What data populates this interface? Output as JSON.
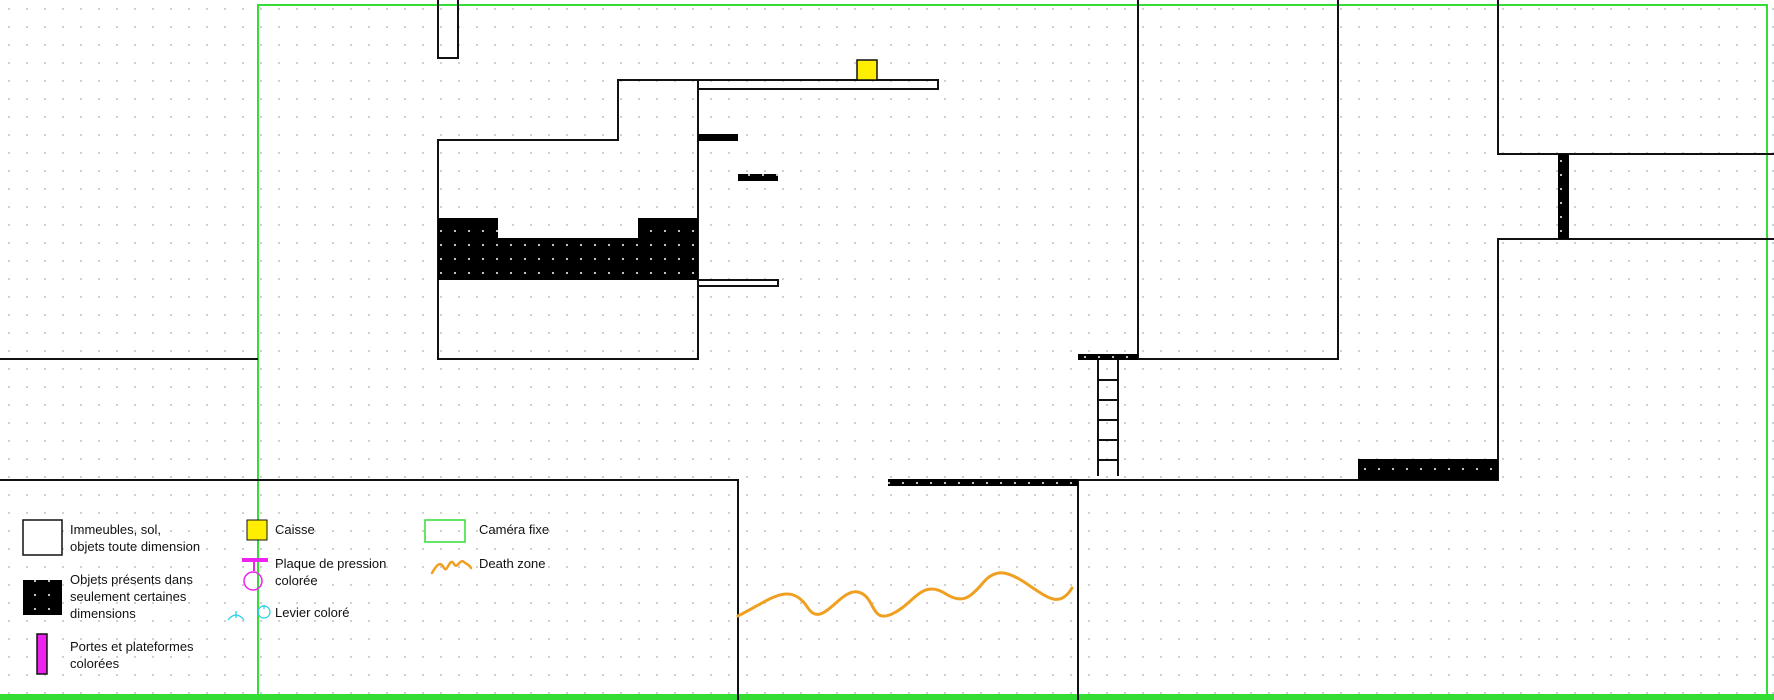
{
  "legend": {
    "buildings": "Immeubles, sol,\nobjets toute dimension",
    "dimension_objects": "Objets présents  dans\nseulement certaines\ndimensions",
    "colored_doors": "Portes et plateformes\ncolorées",
    "crate": "Caisse",
    "pressure_plate": "Plaque de pression\ncolorée",
    "lever": "Levier coloré",
    "fixed_camera": "Caméra fixe",
    "death_zone": "Death zone"
  },
  "colors": {
    "camera": "#33dd33",
    "crate": "#ffee00",
    "colored_object": "#ee22ee",
    "lever": "#22ccee",
    "death_zone": "#f0a020",
    "outline": "#111111",
    "dimension_fill": "#000000"
  }
}
